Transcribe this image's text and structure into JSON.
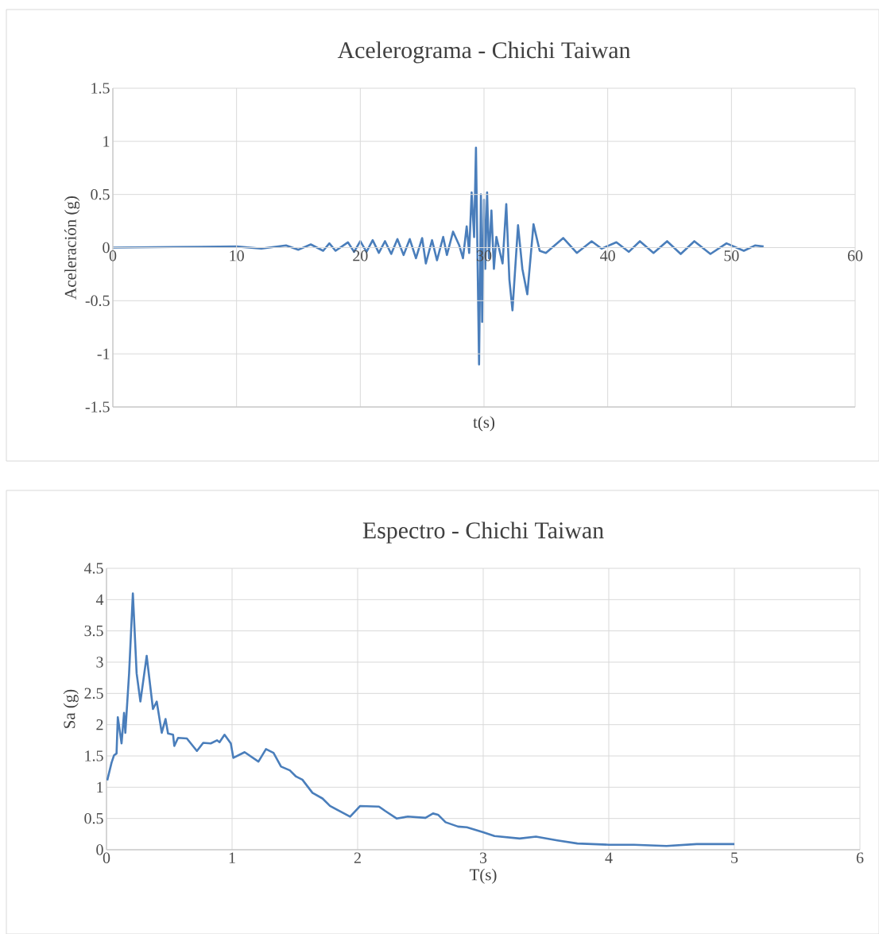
{
  "chart_data": [
    {
      "type": "line",
      "title": "Acelerograma - Chichi Taiwan",
      "xlabel": "t(s)",
      "ylabel": "Aceleración (g)",
      "color": "#4a7ebb",
      "grid": true,
      "x": [
        0,
        5,
        10,
        12,
        14,
        15,
        16,
        17,
        17.5,
        18,
        19,
        19.5,
        20,
        20.5,
        21,
        21.5,
        22,
        22.5,
        23,
        23.5,
        24,
        24.5,
        25,
        25.3,
        25.8,
        26.2,
        26.7,
        27,
        27.5,
        28,
        28.3,
        28.6,
        28.8,
        29,
        29.2,
        29.35,
        29.5,
        29.6,
        29.75,
        29.85,
        30,
        30.1,
        30.25,
        30.4,
        30.6,
        30.8,
        31,
        31.3,
        31.5,
        31.8,
        32.05,
        32.3,
        32.75,
        33.1,
        33.5,
        34.0,
        34.5,
        35,
        36.4,
        37.5,
        38.7,
        39.5,
        40.7,
        41.7,
        42.6,
        43.7,
        44.8,
        45.9,
        47.0,
        48.3,
        49.6,
        51.0,
        51.9,
        52.6
      ],
      "values": [
        0,
        0.005,
        0.01,
        -0.01,
        0.02,
        -0.02,
        0.03,
        -0.03,
        0.04,
        -0.03,
        0.05,
        -0.04,
        0.06,
        -0.04,
        0.07,
        -0.05,
        0.06,
        -0.06,
        0.08,
        -0.07,
        0.08,
        -0.1,
        0.09,
        -0.15,
        0.07,
        -0.12,
        0.1,
        -0.07,
        0.15,
        0.02,
        -0.1,
        0.2,
        -0.05,
        0.52,
        0.1,
        0.94,
        -0.3,
        -1.1,
        0.5,
        -0.7,
        0.45,
        -0.2,
        0.52,
        -0.1,
        0.35,
        -0.2,
        0.1,
        -0.05,
        -0.15,
        0.41,
        -0.3,
        -0.59,
        0.21,
        -0.2,
        -0.44,
        0.22,
        -0.03,
        -0.05,
        0.09,
        -0.05,
        0.06,
        -0.01,
        0.05,
        -0.04,
        0.06,
        -0.05,
        0.06,
        -0.06,
        0.06,
        -0.06,
        0.04,
        -0.03,
        0.02,
        0.01
      ],
      "xlim": [
        0,
        60
      ],
      "ylim": [
        -1.5,
        1.5
      ],
      "xticks": [
        0,
        10,
        20,
        30,
        40,
        50,
        60
      ],
      "yticks": [
        -1.5,
        -1,
        -0.5,
        0,
        0.5,
        1,
        1.5
      ]
    },
    {
      "type": "line",
      "title": "Espectro - Chichi Taiwan",
      "xlabel": "T(s)",
      "ylabel": "Sa (g)",
      "color": "#4a7ebb",
      "grid": true,
      "x": [
        0.006,
        0.04,
        0.06,
        0.08,
        0.09,
        0.12,
        0.14,
        0.15,
        0.18,
        0.21,
        0.24,
        0.27,
        0.32,
        0.37,
        0.4,
        0.44,
        0.47,
        0.49,
        0.53,
        0.54,
        0.57,
        0.64,
        0.72,
        0.77,
        0.83,
        0.88,
        0.9,
        0.94,
        0.99,
        1.01,
        1.1,
        1.21,
        1.27,
        1.33,
        1.39,
        1.46,
        1.51,
        1.56,
        1.64,
        1.72,
        1.78,
        1.94,
        2.02,
        2.17,
        2.22,
        2.31,
        2.4,
        2.54,
        2.6,
        2.64,
        2.7,
        2.8,
        2.87,
        3.0,
        3.09,
        3.29,
        3.42,
        3.59,
        3.75,
        4.0,
        4.2,
        4.46,
        4.7,
        5.0
      ],
      "values": [
        1.11,
        1.39,
        1.51,
        1.54,
        2.12,
        1.7,
        2.19,
        1.87,
        2.82,
        4.1,
        2.82,
        2.37,
        3.1,
        2.25,
        2.37,
        1.87,
        2.09,
        1.86,
        1.84,
        1.66,
        1.79,
        1.78,
        1.58,
        1.71,
        1.7,
        1.75,
        1.72,
        1.84,
        1.7,
        1.47,
        1.56,
        1.41,
        1.61,
        1.55,
        1.33,
        1.27,
        1.17,
        1.12,
        0.91,
        0.82,
        0.7,
        0.53,
        0.7,
        0.69,
        0.62,
        0.5,
        0.53,
        0.51,
        0.58,
        0.56,
        0.44,
        0.37,
        0.36,
        0.28,
        0.22,
        0.18,
        0.21,
        0.15,
        0.1,
        0.08,
        0.08,
        0.06,
        0.09,
        0.09
      ],
      "xlim": [
        0,
        6
      ],
      "ylim": [
        0,
        4.5
      ],
      "xticks": [
        0,
        1,
        2,
        3,
        4,
        5,
        6
      ],
      "yticks": [
        0,
        0.5,
        1,
        1.5,
        2,
        2.5,
        3,
        3.5,
        4,
        4.5
      ]
    }
  ]
}
